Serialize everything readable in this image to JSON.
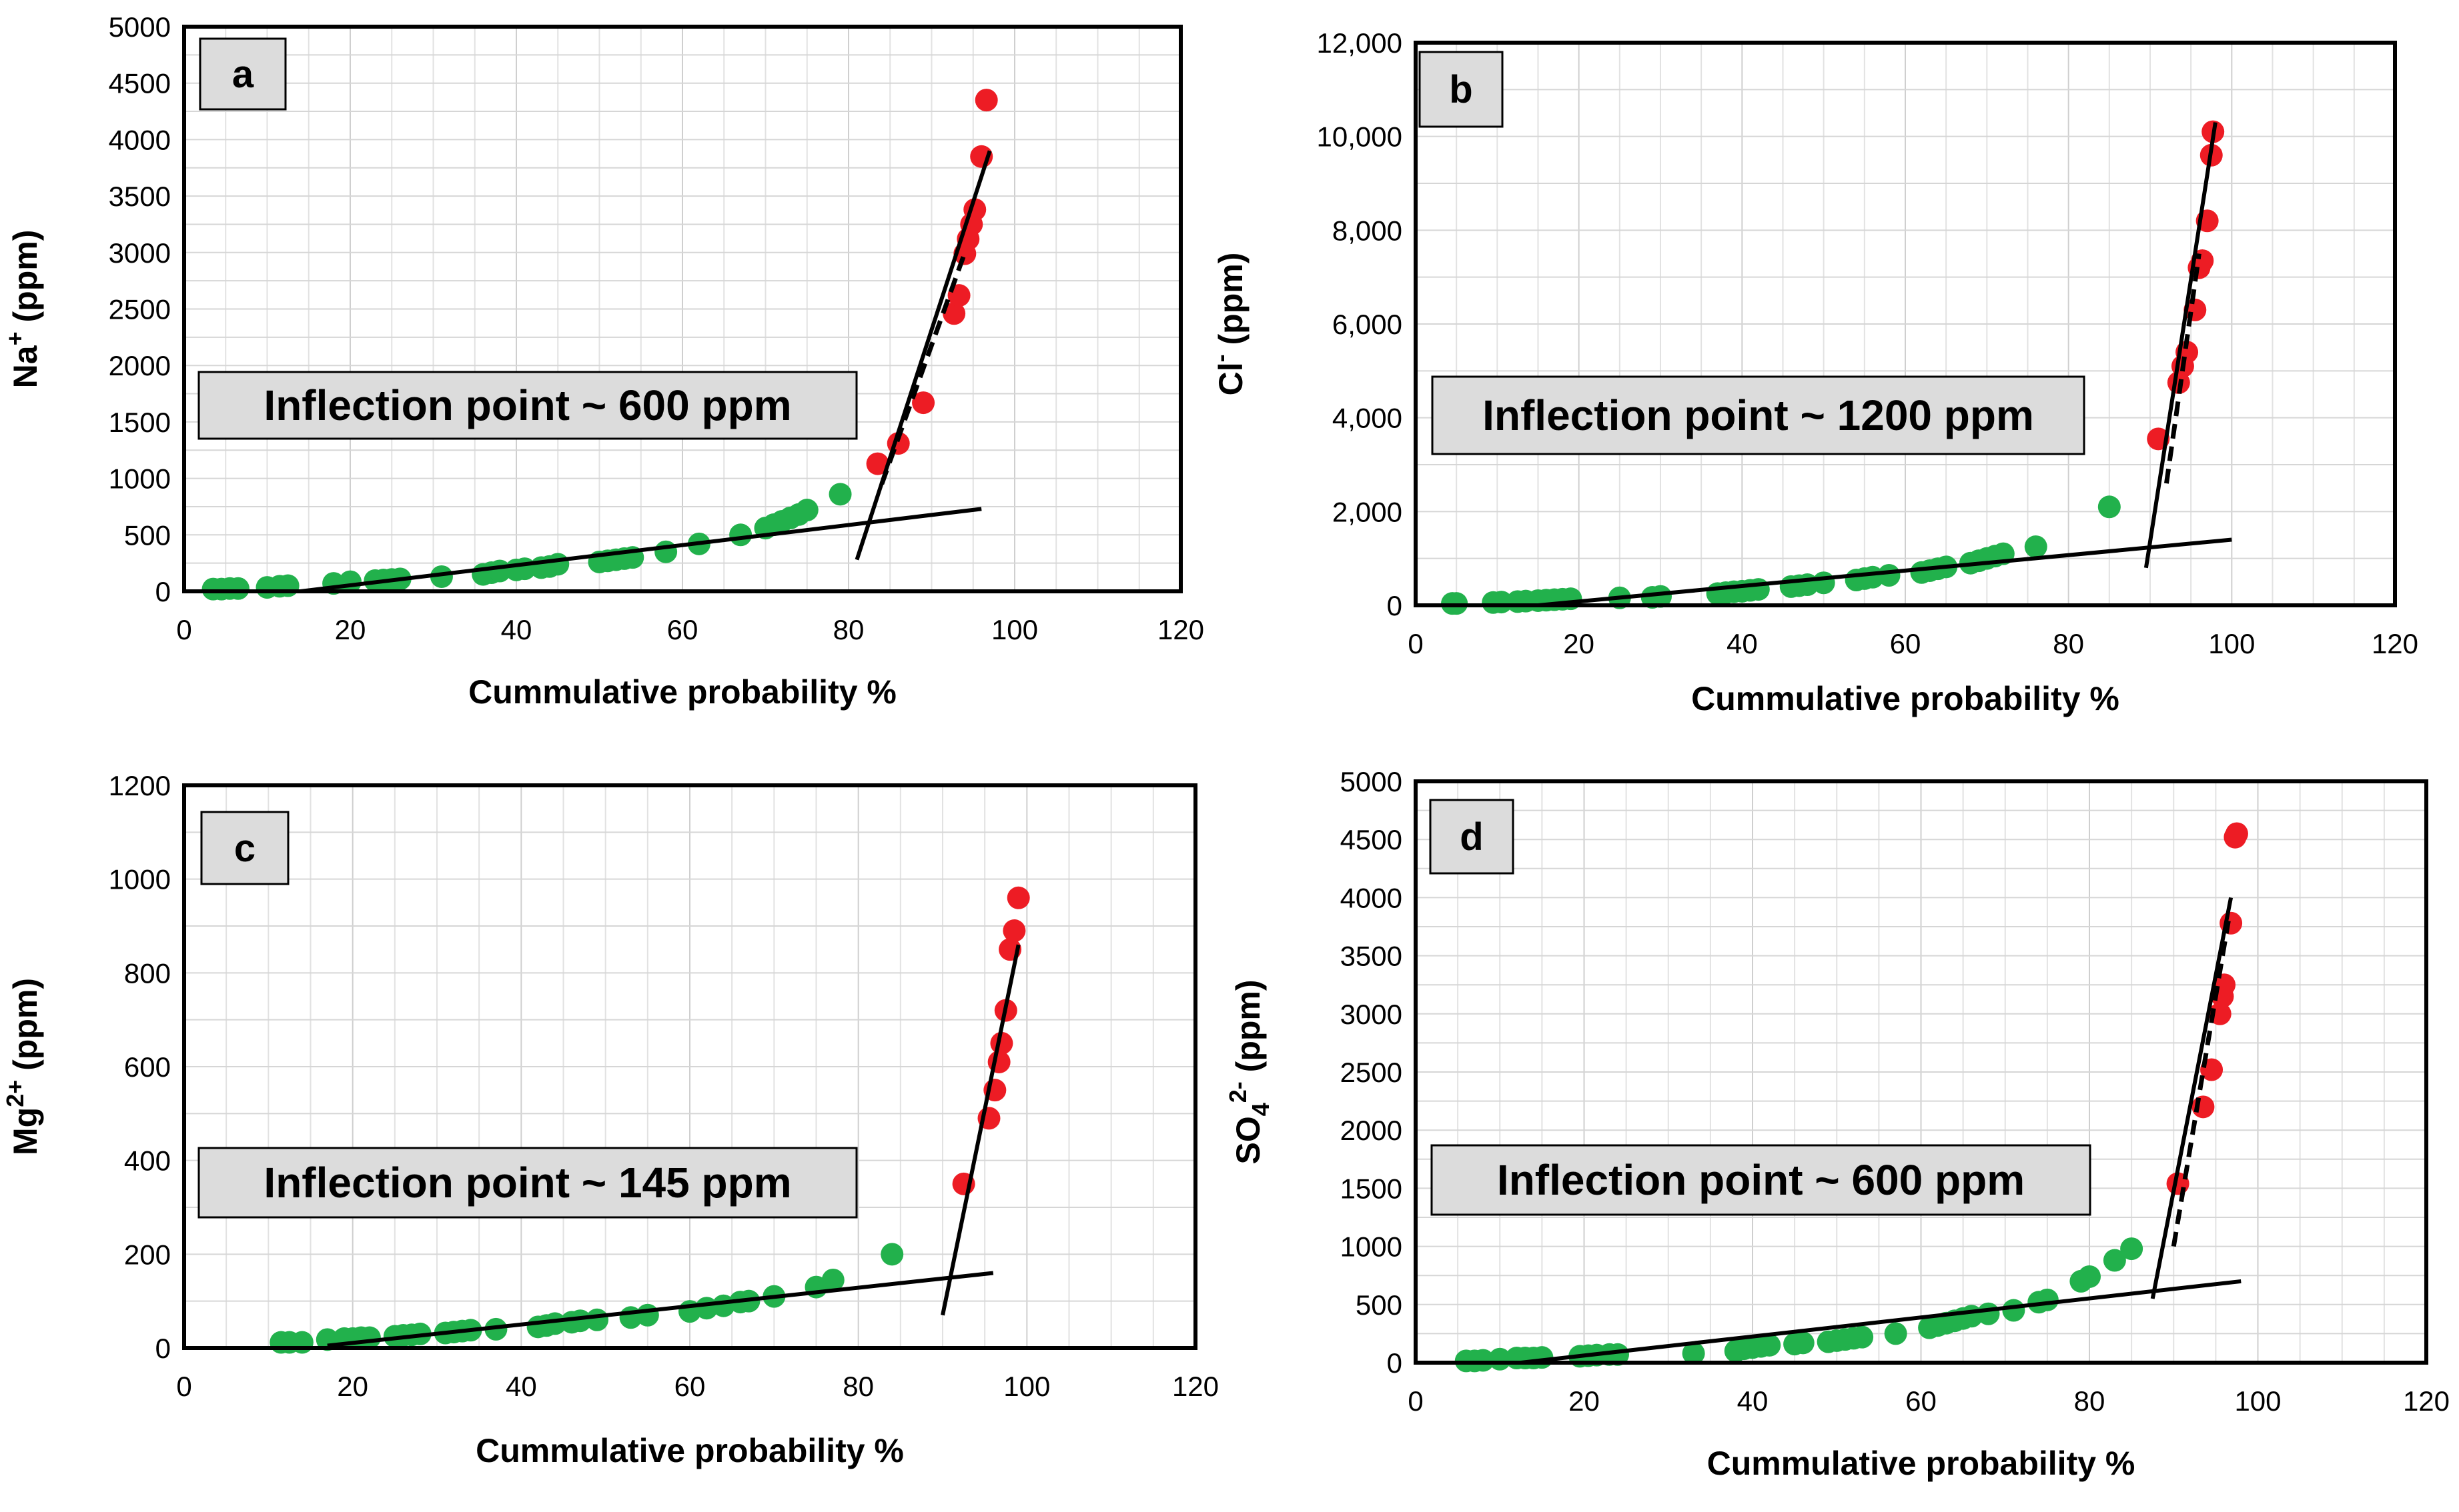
{
  "chart_data": [
    {
      "panel": "a",
      "type": "scatter",
      "xlabel": "Cummulative probability %",
      "ylabel": "Na+ (ppm)",
      "ylabel_base": "Na",
      "ylabel_sup": "+",
      "ylabel_unit": "(ppm)",
      "xlim": [
        0,
        120
      ],
      "ylim": [
        0,
        5000
      ],
      "xticks": [
        "0",
        "20",
        "40",
        "60",
        "80",
        "100",
        "120"
      ],
      "yticks": [
        "0",
        "500",
        "1000",
        "1500",
        "2000",
        "2500",
        "3000",
        "3500",
        "4000",
        "4500",
        "5000"
      ],
      "annotation": "Inflection point ~ 600 ppm",
      "grid": true,
      "series": [
        {
          "color": "#22b14c",
          "points": [
            [
              3.5,
              20
            ],
            [
              4.5,
              20
            ],
            [
              5.5,
              25
            ],
            [
              6.5,
              25
            ],
            [
              10,
              35
            ],
            [
              11.5,
              45
            ],
            [
              12.5,
              50
            ],
            [
              18,
              70
            ],
            [
              20,
              85
            ],
            [
              23,
              95
            ],
            [
              24,
              100
            ],
            [
              25,
              105
            ],
            [
              26,
              110
            ],
            [
              31,
              130
            ],
            [
              36,
              150
            ],
            [
              37,
              165
            ],
            [
              38,
              180
            ],
            [
              40,
              190
            ],
            [
              41,
              200
            ],
            [
              43,
              210
            ],
            [
              44,
              220
            ],
            [
              45,
              240
            ],
            [
              50,
              260
            ],
            [
              51,
              270
            ],
            [
              52,
              280
            ],
            [
              53,
              290
            ],
            [
              54,
              300
            ],
            [
              58,
              350
            ],
            [
              62,
              420
            ],
            [
              67,
              500
            ],
            [
              70,
              560
            ],
            [
              71,
              590
            ],
            [
              72,
              620
            ],
            [
              73,
              650
            ],
            [
              74,
              680
            ],
            [
              75,
              720
            ],
            [
              79,
              860
            ]
          ]
        },
        {
          "color": "#ed1c24",
          "points": [
            [
              83.5,
              1130
            ],
            [
              86,
              1310
            ],
            [
              89,
              1670
            ],
            [
              92.7,
              2460
            ],
            [
              93.3,
              2620
            ],
            [
              94,
              2990
            ],
            [
              94.4,
              3120
            ],
            [
              94.8,
              3250
            ],
            [
              95.2,
              3380
            ],
            [
              96,
              3850
            ],
            [
              96.6,
              4350
            ]
          ]
        }
      ],
      "lines": [
        {
          "style": "solid",
          "points": [
            [
              14,
              0
            ],
            [
              96,
              730
            ]
          ]
        },
        {
          "style": "solid",
          "points": [
            [
              81,
              280
            ],
            [
              97,
              3900
            ]
          ]
        },
        {
          "style": "dashed",
          "points": [
            [
              84,
              950
            ],
            [
              94,
              3000
            ]
          ]
        }
      ]
    },
    {
      "panel": "b",
      "type": "scatter",
      "xlabel": "Cummulative probability %",
      "ylabel": "Cl- (ppm)",
      "ylabel_base": "Cl",
      "ylabel_sup": "-",
      "ylabel_unit": "(ppm)",
      "xlim": [
        0,
        120
      ],
      "ylim": [
        0,
        12000
      ],
      "xticks": [
        "0",
        "20",
        "40",
        "60",
        "80",
        "100",
        "120"
      ],
      "yticks": [
        "0",
        "2,000",
        "4,000",
        "6,000",
        "8,000",
        "10,000",
        "12,000"
      ],
      "annotation": "Inflection point ~ 1200 ppm",
      "grid": true,
      "series": [
        {
          "color": "#22b14c",
          "points": [
            [
              4.5,
              40
            ],
            [
              5,
              40
            ],
            [
              9.5,
              60
            ],
            [
              10.5,
              70
            ],
            [
              12.5,
              80
            ],
            [
              13.5,
              90
            ],
            [
              15,
              100
            ],
            [
              16,
              110
            ],
            [
              17,
              120
            ],
            [
              18,
              130
            ],
            [
              19,
              140
            ],
            [
              25,
              160
            ],
            [
              29,
              170
            ],
            [
              30,
              190
            ],
            [
              37,
              250
            ],
            [
              38,
              270
            ],
            [
              39,
              290
            ],
            [
              40,
              300
            ],
            [
              41,
              320
            ],
            [
              42,
              340
            ],
            [
              46,
              400
            ],
            [
              47,
              420
            ],
            [
              48,
              440
            ],
            [
              50,
              480
            ],
            [
              54,
              540
            ],
            [
              55,
              570
            ],
            [
              56,
              600
            ],
            [
              58,
              640
            ],
            [
              62,
              700
            ],
            [
              63,
              740
            ],
            [
              64,
              780
            ],
            [
              65,
              820
            ],
            [
              68,
              900
            ],
            [
              69,
              950
            ],
            [
              70,
              1000
            ],
            [
              71,
              1050
            ],
            [
              72,
              1100
            ],
            [
              76,
              1250
            ],
            [
              85,
              2100
            ]
          ]
        },
        {
          "color": "#ed1c24",
          "points": [
            [
              91,
              3550
            ],
            [
              93.5,
              4750
            ],
            [
              94,
              5100
            ],
            [
              94.5,
              5400
            ],
            [
              95.5,
              6300
            ],
            [
              96,
              7200
            ],
            [
              96.4,
              7350
            ],
            [
              97,
              8200
            ],
            [
              97.5,
              9600
            ],
            [
              97.7,
              10100
            ]
          ]
        }
      ],
      "lines": [
        {
          "style": "solid",
          "points": [
            [
              15,
              0
            ],
            [
              100,
              1400
            ]
          ]
        },
        {
          "style": "solid",
          "points": [
            [
              89.5,
              800
            ],
            [
              98,
              10300
            ]
          ]
        },
        {
          "style": "dashed",
          "points": [
            [
              92,
              2600
            ],
            [
              96,
              7500
            ]
          ]
        }
      ]
    },
    {
      "panel": "c",
      "type": "scatter",
      "xlabel": "Cummulative probability %",
      "ylabel": "Mg2+ (ppm)",
      "ylabel_base": "Mg",
      "ylabel_sup": "2+",
      "ylabel_unit": "(ppm)",
      "xlim": [
        0,
        120
      ],
      "ylim": [
        0,
        1200
      ],
      "xticks": [
        "0",
        "20",
        "40",
        "60",
        "80",
        "100",
        "120"
      ],
      "yticks": [
        "0",
        "200",
        "400",
        "600",
        "800",
        "1000",
        "1200"
      ],
      "annotation": "Inflection point ~ 145 ppm",
      "grid": true,
      "series": [
        {
          "color": "#22b14c",
          "points": [
            [
              11.5,
              12
            ],
            [
              12.5,
              12
            ],
            [
              14,
              12
            ],
            [
              17,
              18
            ],
            [
              19,
              20
            ],
            [
              20,
              20
            ],
            [
              21,
              22
            ],
            [
              22,
              22
            ],
            [
              25,
              25
            ],
            [
              26,
              27
            ],
            [
              27,
              28
            ],
            [
              28,
              30
            ],
            [
              31,
              32
            ],
            [
              32,
              34
            ],
            [
              33,
              36
            ],
            [
              34,
              38
            ],
            [
              37,
              40
            ],
            [
              42,
              45
            ],
            [
              43,
              48
            ],
            [
              44,
              52
            ],
            [
              46,
              55
            ],
            [
              47,
              58
            ],
            [
              49,
              60
            ],
            [
              53,
              65
            ],
            [
              55,
              70
            ],
            [
              60,
              78
            ],
            [
              62,
              85
            ],
            [
              64,
              90
            ],
            [
              66,
              98
            ],
            [
              67,
              100
            ],
            [
              70,
              110
            ],
            [
              75,
              130
            ],
            [
              77,
              145
            ],
            [
              84,
              200
            ]
          ]
        },
        {
          "color": "#ed1c24",
          "points": [
            [
              92.5,
              350
            ],
            [
              95.5,
              490
            ],
            [
              96.2,
              550
            ],
            [
              96.7,
              610
            ],
            [
              97,
              650
            ],
            [
              97.5,
              720
            ],
            [
              98,
              850
            ],
            [
              98.5,
              890
            ],
            [
              99,
              960
            ]
          ]
        }
      ],
      "lines": [
        {
          "style": "solid",
          "points": [
            [
              17,
              5
            ],
            [
              96,
              160
            ]
          ]
        },
        {
          "style": "solid",
          "points": [
            [
              90,
              70
            ],
            [
              99,
              860
            ]
          ]
        }
      ]
    },
    {
      "panel": "d",
      "type": "scatter",
      "xlabel": "Cummulative probability %",
      "ylabel": "SO42- (ppm)",
      "ylabel_base": "SO",
      "ylabel_sub": "4",
      "ylabel_sup": "2-",
      "ylabel_unit": "(ppm)",
      "xlim": [
        0,
        120
      ],
      "ylim": [
        0,
        5000
      ],
      "xticks": [
        "0",
        "20",
        "40",
        "60",
        "80",
        "100",
        "120"
      ],
      "yticks": [
        "0",
        "500",
        "1000",
        "1500",
        "2000",
        "2500",
        "3000",
        "3500",
        "4000",
        "4500",
        "5000"
      ],
      "annotation": "Inflection point ~ 600 ppm",
      "grid": true,
      "series": [
        {
          "color": "#22b14c",
          "points": [
            [
              6,
              15
            ],
            [
              7,
              15
            ],
            [
              8,
              20
            ],
            [
              10,
              30
            ],
            [
              12,
              40
            ],
            [
              13,
              40
            ],
            [
              14,
              40
            ],
            [
              15,
              45
            ],
            [
              19.5,
              55
            ],
            [
              20.5,
              60
            ],
            [
              21.5,
              65
            ],
            [
              23,
              70
            ],
            [
              24,
              70
            ],
            [
              33,
              80
            ],
            [
              38,
              100
            ],
            [
              39,
              120
            ],
            [
              40,
              130
            ],
            [
              41,
              140
            ],
            [
              42,
              150
            ],
            [
              45,
              160
            ],
            [
              46,
              170
            ],
            [
              49,
              180
            ],
            [
              50,
              190
            ],
            [
              51,
              200
            ],
            [
              52,
              210
            ],
            [
              53,
              220
            ],
            [
              57,
              250
            ],
            [
              61,
              300
            ],
            [
              62,
              320
            ],
            [
              63,
              340
            ],
            [
              64,
              360
            ],
            [
              65,
              380
            ],
            [
              66,
              400
            ],
            [
              68,
              420
            ],
            [
              71,
              450
            ],
            [
              74,
              520
            ],
            [
              75,
              540
            ],
            [
              79,
              700
            ],
            [
              80,
              740
            ],
            [
              83,
              880
            ],
            [
              85,
              980
            ]
          ]
        },
        {
          "color": "#ed1c24",
          "points": [
            [
              90.5,
              1540
            ],
            [
              93.5,
              2200
            ],
            [
              94.5,
              2520
            ],
            [
              95.5,
              3000
            ],
            [
              95.8,
              3150
            ],
            [
              96,
              3250
            ],
            [
              96.8,
              3780
            ],
            [
              97.3,
              4520
            ],
            [
              97.5,
              4550
            ]
          ]
        }
      ],
      "lines": [
        {
          "style": "solid",
          "points": [
            [
              12.5,
              0
            ],
            [
              98,
              700
            ]
          ]
        },
        {
          "style": "solid",
          "points": [
            [
              87.5,
              550
            ],
            [
              96.8,
              4000
            ]
          ]
        },
        {
          "style": "dashed",
          "points": [
            [
              90,
              1000
            ],
            [
              96.5,
              3800
            ]
          ]
        }
      ]
    }
  ]
}
